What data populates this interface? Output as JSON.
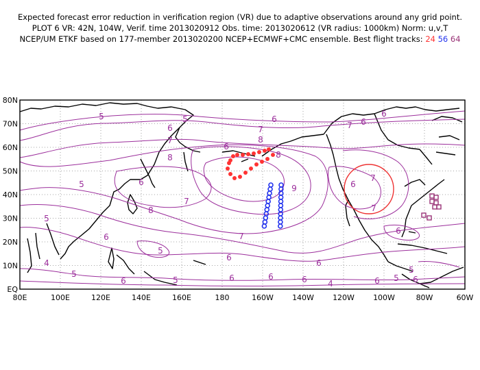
{
  "header": {
    "line1": "Expected forecast error reduction in verification region (VR) due to adaptive observations around any grid point.",
    "line2": "PLOT 6 VR: 42N, 104W, Verif. time 2013020912 Obs. time: 2013020612 (VR radius: 1000km) Norm: u,v,T",
    "line3_prefix": "NCEP/UM ETKF based on 177-member 2013020200 NCEP+ECMWF+CMC ensemble. Best flight tracks:",
    "track_labels": [
      "24",
      "56",
      "64"
    ],
    "track_colors": [
      "#ff3333",
      "#2233ee",
      "#993377"
    ]
  },
  "map": {
    "lat_labels": [
      "80N",
      "70N",
      "60N",
      "50N",
      "40N",
      "30N",
      "20N",
      "10N",
      "EQ"
    ],
    "lon_labels": [
      "80E",
      "100E",
      "120E",
      "140E",
      "160E",
      "180",
      "160W",
      "140W",
      "120W",
      "100W",
      "80W",
      "60W"
    ],
    "contour_color": "#9b2d9b",
    "vr_circle_color": "#ee3333",
    "contour_labels": [
      "5",
      "6",
      "7",
      "8",
      "5",
      "6",
      "7",
      "5",
      "6",
      "8",
      "6",
      "7",
      "8",
      "4",
      "6",
      "5",
      "5",
      "6",
      "7",
      "9",
      "8",
      "7",
      "6",
      "6",
      "6",
      "7",
      "6",
      "5",
      "6",
      "5",
      "5",
      "6",
      "6",
      "6",
      "4",
      "5",
      "6",
      "7",
      "6",
      "6"
    ]
  }
}
